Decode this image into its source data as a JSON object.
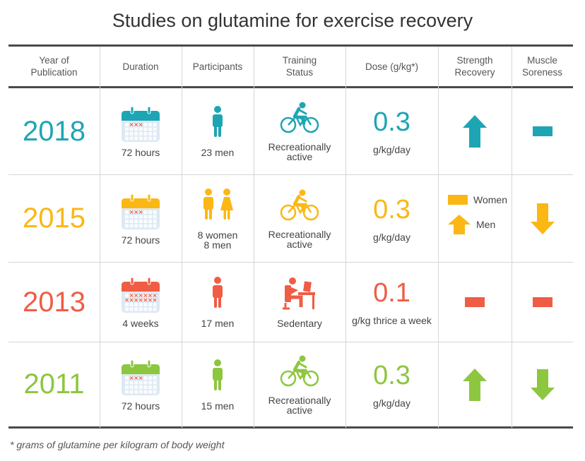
{
  "title": "Studies on glutamine for exercise recovery",
  "colors": {
    "row2018": "#1ea5b4",
    "row2015": "#fbb714",
    "row2013": "#ef5d45",
    "row2011": "#8dc63f",
    "calendar_body": "#dde9f3",
    "calendar_grid": "#ffffff"
  },
  "headers": {
    "year": "Year of\nPublication",
    "duration": "Duration",
    "participants": "Participants",
    "training": "Training\nStatus",
    "dose": "Dose (g/kg*)",
    "strength": "Strength\nRecovery",
    "soreness": "Muscle\nSoreness"
  },
  "rows": [
    {
      "year": "2018",
      "duration": "72 hours",
      "participants": "23 men",
      "participant_icons": [
        "man-icon"
      ],
      "training_status": "Recreationally\nactive",
      "training_icon": "cyclist-icon",
      "dose_value": "0.3",
      "dose_unit": "g/kg/day",
      "strength_recovery": "up-arrow-icon",
      "muscle_soreness": "dash-icon"
    },
    {
      "year": "2015",
      "duration": "72 hours",
      "participants": "8 women\n8 men",
      "participant_icons": [
        "man-icon",
        "woman-icon"
      ],
      "training_status": "Recreationally\nactive",
      "training_icon": "cyclist-icon",
      "dose_value": "0.3",
      "dose_unit": "g/kg/day",
      "strength_recovery": {
        "women_label": "Women",
        "women_icon": "dash-icon",
        "men_label": "Men",
        "men_icon": "up-arrow-icon"
      },
      "muscle_soreness": "down-arrow-icon"
    },
    {
      "year": "2013",
      "duration": "4 weeks",
      "participants": "17 men",
      "participant_icons": [
        "man-icon"
      ],
      "training_status": "Sedentary",
      "training_icon": "desk-worker-icon",
      "dose_value": "0.1",
      "dose_unit": "g/kg thrice a week",
      "strength_recovery": "dash-icon",
      "muscle_soreness": "dash-icon"
    },
    {
      "year": "2011",
      "duration": "72 hours",
      "participants": "15 men",
      "participant_icons": [
        "man-icon"
      ],
      "training_status": "Recreationally\nactive",
      "training_icon": "cyclist-icon",
      "dose_value": "0.3",
      "dose_unit": "g/kg/day",
      "strength_recovery": "up-arrow-icon",
      "muscle_soreness": "down-arrow-icon"
    }
  ],
  "footnote": "* grams of glutamine per kilogram of body weight",
  "chart_data": {
    "type": "table",
    "title": "Studies on glutamine for exercise recovery",
    "columns": [
      "Year of Publication",
      "Duration",
      "Participants",
      "Training Status",
      "Dose (g/kg*)",
      "Strength Recovery",
      "Muscle Soreness"
    ],
    "rows": [
      [
        "2018",
        "72 hours",
        "23 men",
        "Recreationally active",
        "0.3 g/kg/day",
        "up",
        "no change"
      ],
      [
        "2015",
        "72 hours",
        "8 women 8 men",
        "Recreationally active",
        "0.3 g/kg/day",
        "Women: no change; Men: up",
        "down"
      ],
      [
        "2013",
        "4 weeks",
        "17 men",
        "Sedentary",
        "0.1 g/kg thrice a week",
        "no change",
        "no change"
      ],
      [
        "2011",
        "72 hours",
        "15 men",
        "Recreationally active",
        "0.3 g/kg/day",
        "up",
        "down"
      ]
    ],
    "footnote": "* grams of glutamine per kilogram of body weight"
  }
}
